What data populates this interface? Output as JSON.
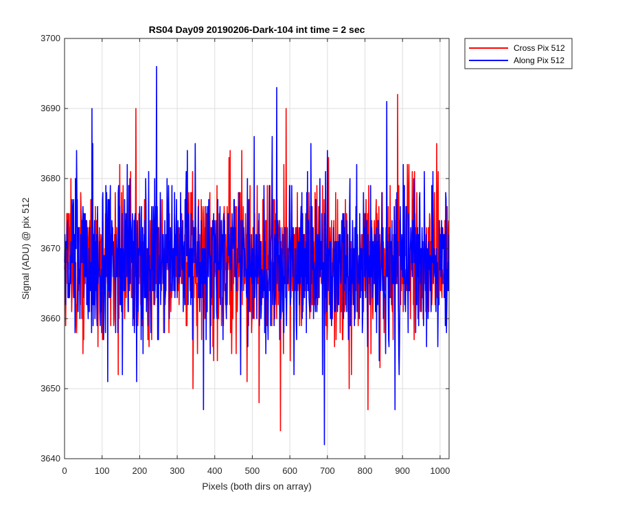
{
  "chart_data": {
    "type": "line",
    "title": "RS04 Day09 20190206-Dark-104 int time = 2 sec",
    "xlabel": "Pixels (both dirs on array)",
    "ylabel": "Signal (ADU) @ pix 512",
    "xlim": [
      0,
      1024
    ],
    "ylim": [
      3640,
      3700
    ],
    "x_ticks": [
      0,
      100,
      200,
      300,
      400,
      500,
      600,
      700,
      800,
      900,
      1000
    ],
    "y_ticks": [
      3640,
      3650,
      3660,
      3670,
      3680,
      3690,
      3700
    ],
    "grid": true,
    "legend_position": "outside-top-right",
    "x_step": 1,
    "series": [
      {
        "name": "Cross Pix 512",
        "color": "#ff0000",
        "num_points": 1024,
        "mean": 3668,
        "spread": 5.5,
        "min": 3644,
        "max": 3692,
        "extremes": [
          {
            "x": 575,
            "y": 3644
          },
          {
            "x": 887,
            "y": 3692
          },
          {
            "x": 190,
            "y": 3690
          },
          {
            "x": 590,
            "y": 3690
          },
          {
            "x": 342,
            "y": 3650
          },
          {
            "x": 808,
            "y": 3647
          }
        ]
      },
      {
        "name": "Along Pix 512",
        "color": "#0000ff",
        "num_points": 1024,
        "mean": 3668,
        "spread": 5.5,
        "min": 3642,
        "max": 3696,
        "extremes": [
          {
            "x": 245,
            "y": 3696
          },
          {
            "x": 565,
            "y": 3693
          },
          {
            "x": 73,
            "y": 3690
          },
          {
            "x": 858,
            "y": 3691
          },
          {
            "x": 692,
            "y": 3642
          },
          {
            "x": 370,
            "y": 3647
          },
          {
            "x": 880,
            "y": 3647
          }
        ]
      }
    ]
  }
}
